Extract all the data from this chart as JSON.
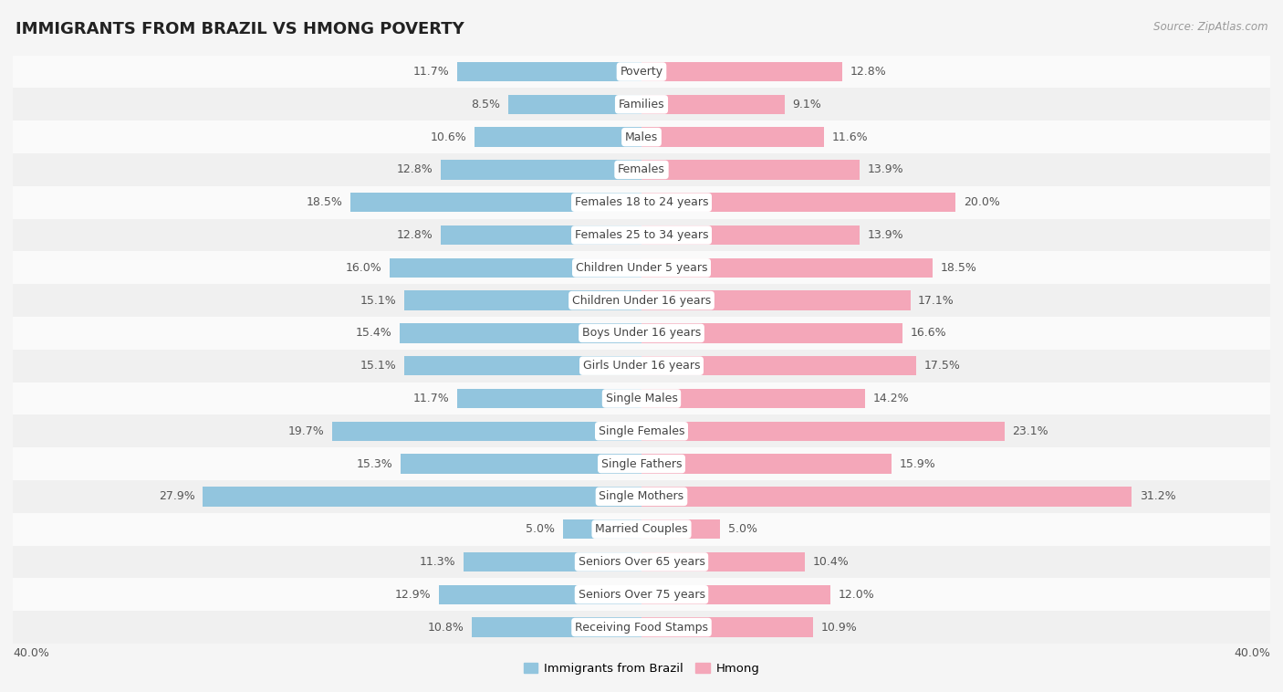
{
  "title": "IMMIGRANTS FROM BRAZIL VS HMONG POVERTY",
  "source": "Source: ZipAtlas.com",
  "categories": [
    "Poverty",
    "Families",
    "Males",
    "Females",
    "Females 18 to 24 years",
    "Females 25 to 34 years",
    "Children Under 5 years",
    "Children Under 16 years",
    "Boys Under 16 years",
    "Girls Under 16 years",
    "Single Males",
    "Single Females",
    "Single Fathers",
    "Single Mothers",
    "Married Couples",
    "Seniors Over 65 years",
    "Seniors Over 75 years",
    "Receiving Food Stamps"
  ],
  "brazil_values": [
    11.7,
    8.5,
    10.6,
    12.8,
    18.5,
    12.8,
    16.0,
    15.1,
    15.4,
    15.1,
    11.7,
    19.7,
    15.3,
    27.9,
    5.0,
    11.3,
    12.9,
    10.8
  ],
  "hmong_values": [
    12.8,
    9.1,
    11.6,
    13.9,
    20.0,
    13.9,
    18.5,
    17.1,
    16.6,
    17.5,
    14.2,
    23.1,
    15.9,
    31.2,
    5.0,
    10.4,
    12.0,
    10.9
  ],
  "brazil_color": "#92c5de",
  "hmong_color": "#f4a7b9",
  "row_color_odd": "#f0f0f0",
  "row_color_even": "#fafafa",
  "bg_color": "#f5f5f5",
  "xlim": 40.0,
  "bar_height": 0.6,
  "label_fontsize": 9,
  "value_fontsize": 9,
  "legend_brazil": "Immigrants from Brazil",
  "legend_hmong": "Hmong"
}
